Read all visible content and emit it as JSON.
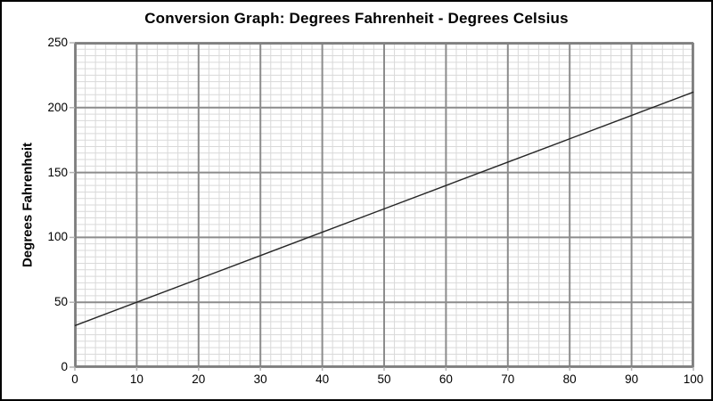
{
  "chart_data": {
    "type": "line",
    "title": "Conversion Graph: Degrees Fahrenheit - Degrees Celsius",
    "xlabel": "",
    "ylabel": "Degrees Fahrenheit",
    "xlim": [
      0,
      100
    ],
    "ylim": [
      0,
      250
    ],
    "x_ticks": [
      0,
      10,
      20,
      30,
      40,
      50,
      60,
      70,
      80,
      90,
      100
    ],
    "y_ticks": [
      0,
      50,
      100,
      150,
      200,
      250
    ],
    "x_minor_divisions_per_major": 6,
    "y_minor_divisions_per_major": 10,
    "grid": "major-and-minor",
    "legend": "none",
    "series": [
      {
        "name": "fahrenheit-vs-celsius",
        "x": [
          0,
          10,
          20,
          30,
          40,
          50,
          60,
          70,
          80,
          90,
          100
        ],
        "y": [
          32,
          50,
          68,
          86,
          104,
          122,
          140,
          158,
          176,
          194,
          212
        ]
      }
    ],
    "colors": {
      "line": "#262626",
      "major_grid": "#8c8c8c",
      "minor_grid": "#d9d9d9",
      "plot_border": "#808080",
      "axis_tick": "#b3b3b3",
      "text": "#000000",
      "background": "#ffffff",
      "frame_border": "#000000"
    }
  }
}
